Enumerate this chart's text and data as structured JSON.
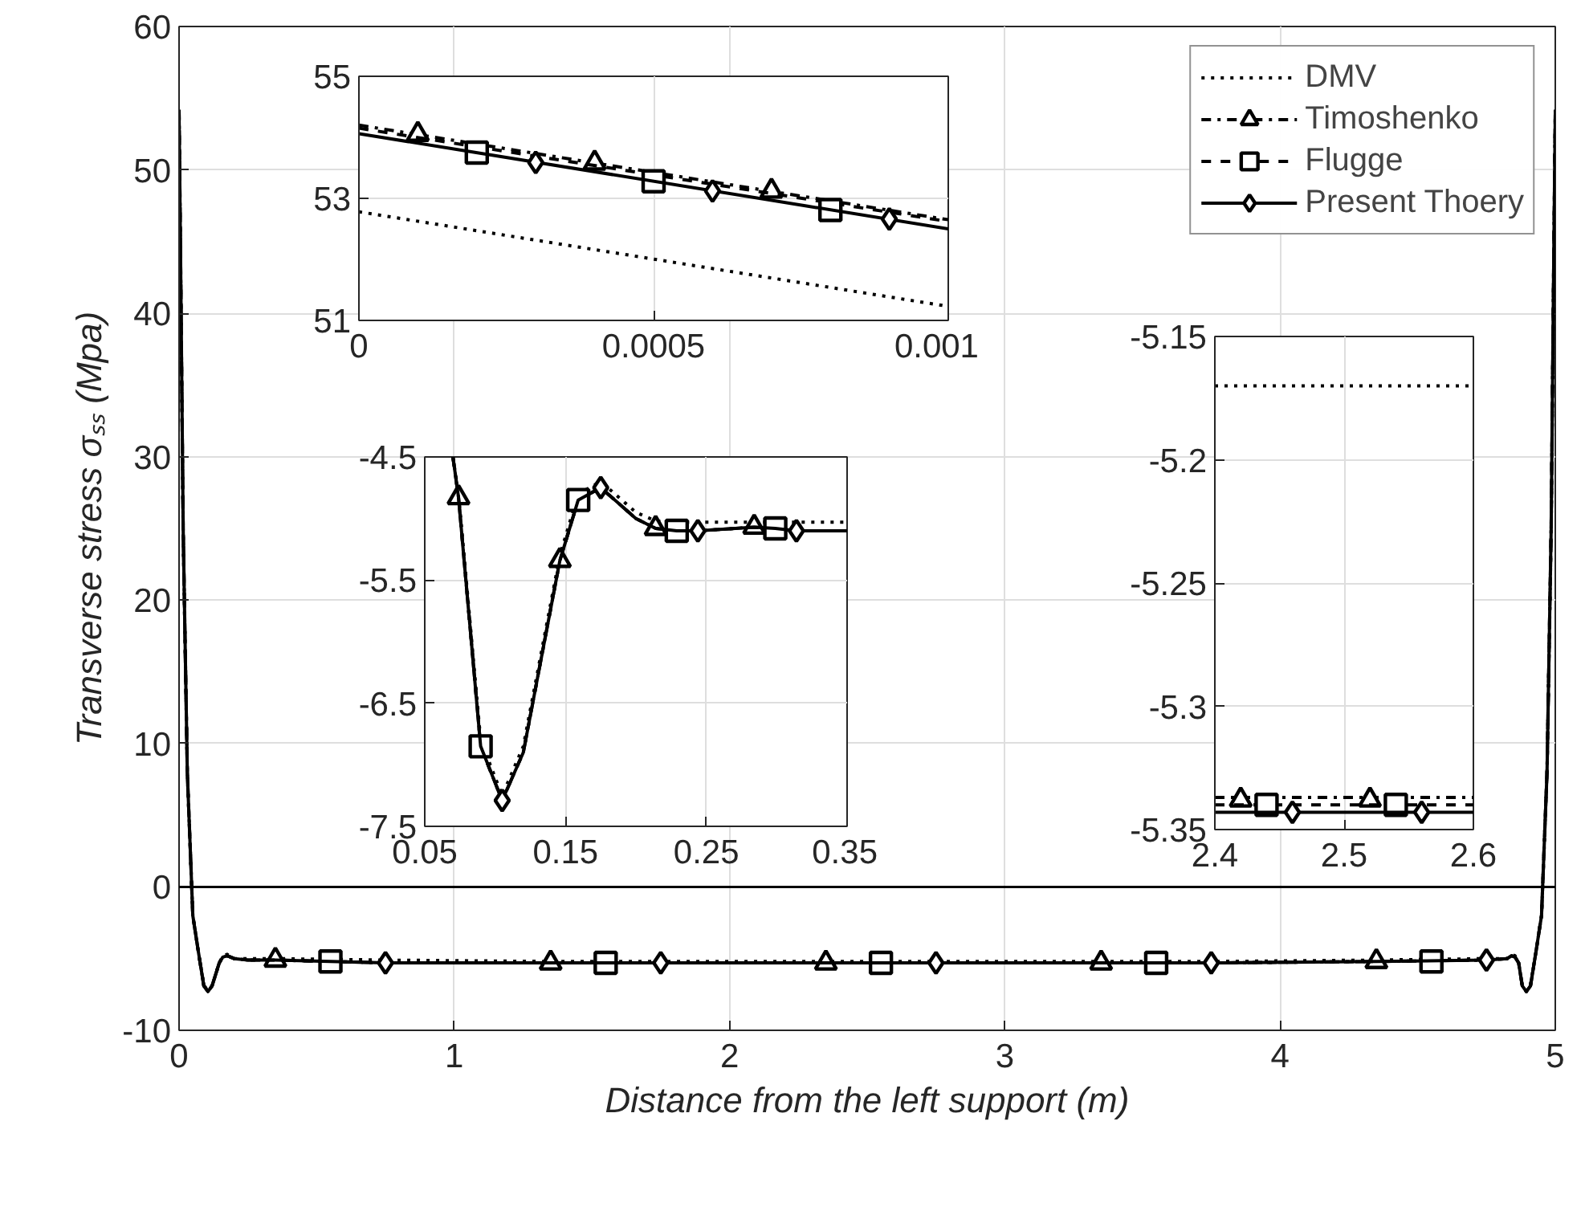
{
  "chart_data": [
    {
      "type": "line",
      "xlabel": "Distance from the left support (m)",
      "ylabel": "Transverse stress σₛₛ (Mpa)",
      "xlim": [
        0,
        5
      ],
      "ylim": [
        -10,
        60
      ],
      "xticks": [
        0,
        1,
        2,
        3,
        4,
        5
      ],
      "yticks": [
        -10,
        0,
        10,
        20,
        30,
        40,
        50,
        60
      ],
      "grid": true,
      "legend": "top right",
      "ref_lines": [
        {
          "axis": "y",
          "value": 0,
          "color": "#000000",
          "line_style": "solid"
        }
      ],
      "series": [
        {
          "name": "DMV",
          "color": "#000000",
          "line_style": "dotted",
          "marker": "none",
          "x": [
            0,
            0.005,
            0.015,
            0.03,
            0.05,
            0.07,
            0.09,
            0.105,
            0.12,
            0.146,
            0.159,
            0.175,
            0.2,
            0.25,
            0.35,
            0.75,
            1.35,
            1.75,
            2.4,
            2.6,
            3.35,
            3.75,
            4.35,
            4.75,
            4.825,
            4.841,
            4.854,
            4.867,
            4.88,
            4.895,
            4.91,
            4.93,
            4.95,
            4.97,
            4.985,
            4.995,
            5
          ],
          "values": [
            52.8,
            44,
            24.5,
            8,
            -2,
            -4.5,
            -6.8,
            -7.3,
            -6.9,
            -5.3,
            -4.8,
            -4.7,
            -5.0,
            -5.0,
            -5.0,
            -5.1,
            -5.2,
            -5.2,
            -5.2,
            -5.2,
            -5.2,
            -5.2,
            -5.1,
            -5.0,
            -5.0,
            -4.7,
            -4.8,
            -5.3,
            -6.9,
            -7.3,
            -6.8,
            -4.5,
            -2,
            8,
            24.5,
            44,
            52.8
          ]
        },
        {
          "name": "Timoshenko",
          "color": "#000000",
          "line_style": "dashdot",
          "marker": "none",
          "x": [
            0,
            0.005,
            0.015,
            0.03,
            0.05,
            0.07,
            0.09,
            0.105,
            0.12,
            0.146,
            0.159,
            0.175,
            0.2,
            0.25,
            0.35,
            0.75,
            1.35,
            1.75,
            2.35,
            2.75,
            3.35,
            3.75,
            4.35,
            4.75,
            4.825,
            4.841,
            4.854,
            4.867,
            4.88,
            4.895,
            4.91,
            4.93,
            4.95,
            4.97,
            4.985,
            4.995,
            5
          ],
          "values": [
            54.2,
            45,
            25,
            8,
            -2,
            -4.5,
            -6.9,
            -7.3,
            -6.9,
            -5.3,
            -4.9,
            -4.8,
            -5.0,
            -5.1,
            -5.1,
            -5.3,
            -5.3,
            -5.3,
            -5.3,
            -5.3,
            -5.3,
            -5.3,
            -5.2,
            -5.1,
            -5.0,
            -4.8,
            -4.9,
            -5.3,
            -6.9,
            -7.3,
            -6.9,
            -4.5,
            -2,
            8,
            25,
            45,
            54.2
          ]
        },
        {
          "type": "scatter",
          "color": "#000000",
          "marker": "triangle",
          "x": [
            0.35,
            1.35,
            2.35,
            3.35,
            4.35
          ],
          "values": [
            -5.1,
            -5.3,
            -5.3,
            -5.3,
            -5.2
          ]
        },
        {
          "name": "Flugge",
          "color": "#000000",
          "line_style": "dashed",
          "marker": "none",
          "x": [
            0,
            0.005,
            0.015,
            0.03,
            0.05,
            0.07,
            0.09,
            0.105,
            0.12,
            0.146,
            0.159,
            0.175,
            0.2,
            0.25,
            0.35,
            0.75,
            1.35,
            1.75,
            2.35,
            2.75,
            3.35,
            3.75,
            4.35,
            4.75,
            4.825,
            4.841,
            4.854,
            4.867,
            4.88,
            4.895,
            4.91,
            4.93,
            4.95,
            4.97,
            4.985,
            4.995,
            5
          ],
          "values": [
            54.1,
            45,
            25,
            8,
            -2,
            -4.5,
            -6.9,
            -7.3,
            -6.9,
            -5.3,
            -4.9,
            -4.8,
            -5.0,
            -5.1,
            -5.1,
            -5.3,
            -5.3,
            -5.3,
            -5.3,
            -5.3,
            -5.3,
            -5.3,
            -5.2,
            -5.1,
            -5.0,
            -4.8,
            -4.9,
            -5.3,
            -6.9,
            -7.3,
            -6.9,
            -4.5,
            -2,
            8,
            25,
            45,
            54.1
          ]
        },
        {
          "type": "scatter",
          "color": "#000000",
          "marker": "square",
          "x": [
            0.55,
            1.55,
            2.55,
            3.55,
            4.55
          ],
          "values": [
            -5.2,
            -5.3,
            -5.3,
            -5.3,
            -5.2
          ]
        },
        {
          "name": "Present Thoery",
          "color": "#000000",
          "line_style": "solid",
          "marker": "none",
          "x": [
            0,
            0.005,
            0.015,
            0.03,
            0.05,
            0.07,
            0.09,
            0.105,
            0.12,
            0.146,
            0.159,
            0.175,
            0.2,
            0.25,
            0.35,
            0.75,
            1.35,
            1.75,
            2.35,
            2.75,
            3.35,
            3.75,
            4.35,
            4.75,
            4.825,
            4.841,
            4.854,
            4.867,
            4.88,
            4.895,
            4.91,
            4.93,
            4.95,
            4.97,
            4.985,
            4.995,
            5
          ],
          "values": [
            54.0,
            45,
            25,
            8,
            -2,
            -4.5,
            -6.9,
            -7.3,
            -6.9,
            -5.3,
            -4.9,
            -4.8,
            -5.0,
            -5.1,
            -5.1,
            -5.3,
            -5.3,
            -5.3,
            -5.3,
            -5.3,
            -5.3,
            -5.3,
            -5.2,
            -5.1,
            -5.0,
            -4.8,
            -4.9,
            -5.3,
            -6.9,
            -7.3,
            -6.9,
            -4.5,
            -2,
            8,
            25,
            45,
            54.0
          ]
        },
        {
          "type": "scatter",
          "color": "#000000",
          "marker": "diamond",
          "x": [
            0.75,
            1.75,
            2.75,
            3.75,
            4.75
          ],
          "values": [
            -5.3,
            -5.3,
            -5.3,
            -5.3,
            -5.1
          ]
        }
      ]
    },
    {
      "type": "line",
      "xlim": [
        0,
        0.001
      ],
      "ylim": [
        51,
        55
      ],
      "xticks": [
        0,
        0.0005,
        0.001
      ],
      "yticks": [
        51,
        53,
        55
      ],
      "grid": true,
      "series": [
        {
          "color": "#000000",
          "line_style": "dotted",
          "marker": "none",
          "x": [
            0,
            0.001
          ],
          "values": [
            52.78,
            51.23
          ]
        },
        {
          "color": "#000000",
          "line_style": "dashdot",
          "marker": "none",
          "x": [
            0,
            0.001
          ],
          "values": [
            54.2,
            52.65
          ]
        },
        {
          "type": "scatter",
          "color": "#000000",
          "marker": "triangle",
          "x": [
            0.0001,
            0.0004,
            0.0007
          ],
          "values": [
            54.05,
            53.58,
            53.12
          ]
        },
        {
          "color": "#000000",
          "line_style": "dashed",
          "marker": "none",
          "x": [
            0,
            0.001
          ],
          "values": [
            54.15,
            52.62
          ]
        },
        {
          "type": "scatter",
          "color": "#000000",
          "marker": "square",
          "x": [
            0.0002,
            0.0005,
            0.0008
          ],
          "values": [
            53.75,
            53.28,
            52.81
          ]
        },
        {
          "color": "#000000",
          "line_style": "solid",
          "marker": "none",
          "x": [
            0,
            0.001
          ],
          "values": [
            54.06,
            52.5
          ]
        },
        {
          "type": "scatter",
          "color": "#000000",
          "marker": "diamond",
          "x": [
            0.0003,
            0.0006,
            0.0009
          ],
          "values": [
            53.59,
            53.12,
            52.66
          ]
        }
      ]
    },
    {
      "type": "line",
      "xlim": [
        0.05,
        0.35
      ],
      "ylim": [
        -7.5,
        -4.5
      ],
      "xticks": [
        0.05,
        0.15,
        0.25,
        0.35
      ],
      "yticks": [
        -7.5,
        -6.5,
        -5.5,
        -4.5
      ],
      "grid": true,
      "series": [
        {
          "color": "#000000",
          "line_style": "dotted",
          "marker": "none",
          "x": [
            0.07,
            0.074,
            0.0897,
            0.105,
            0.12,
            0.146,
            0.159,
            0.175,
            0.2,
            0.214,
            0.229,
            0.244,
            0.284,
            0.299,
            0.314,
            0.35
          ],
          "values": [
            -4.5,
            -4.8,
            -6.8,
            -7.25,
            -6.85,
            -5.3,
            -4.8,
            -4.7,
            -4.95,
            -5.02,
            -5.03,
            -5.03,
            -5.03,
            -5.03,
            -5.03,
            -5.03
          ]
        },
        {
          "color": "#000000",
          "line_style": "dashdot",
          "marker": "none",
          "x": [
            0.07,
            0.074,
            0.0897,
            0.105,
            0.12,
            0.146,
            0.159,
            0.175,
            0.2,
            0.214,
            0.229,
            0.244,
            0.284,
            0.299,
            0.314,
            0.35
          ],
          "values": [
            -4.5,
            -4.83,
            -6.85,
            -7.29,
            -6.9,
            -5.34,
            -4.85,
            -4.75,
            -5.0,
            -5.08,
            -5.1,
            -5.1,
            -5.07,
            -5.08,
            -5.1,
            -5.1
          ]
        },
        {
          "type": "scatter",
          "color": "#000000",
          "marker": "triangle",
          "x": [
            0.074,
            0.146,
            0.214,
            0.284
          ],
          "values": [
            -4.83,
            -5.34,
            -5.08,
            -5.07
          ]
        },
        {
          "color": "#000000",
          "line_style": "dashed",
          "marker": "none",
          "x": [
            0.07,
            0.074,
            0.0897,
            0.105,
            0.12,
            0.146,
            0.159,
            0.175,
            0.2,
            0.214,
            0.229,
            0.244,
            0.284,
            0.299,
            0.314,
            0.35
          ],
          "values": [
            -4.5,
            -4.83,
            -6.85,
            -7.29,
            -6.9,
            -5.34,
            -4.85,
            -4.75,
            -5.0,
            -5.08,
            -5.1,
            -5.1,
            -5.07,
            -5.08,
            -5.1,
            -5.1
          ]
        },
        {
          "type": "scatter",
          "color": "#000000",
          "marker": "square",
          "x": [
            0.0897,
            0.159,
            0.229,
            0.299
          ],
          "values": [
            -6.85,
            -4.85,
            -5.1,
            -5.08
          ]
        },
        {
          "color": "#000000",
          "line_style": "solid",
          "marker": "none",
          "x": [
            0.07,
            0.074,
            0.0897,
            0.105,
            0.12,
            0.146,
            0.159,
            0.175,
            0.2,
            0.214,
            0.229,
            0.244,
            0.284,
            0.299,
            0.314,
            0.35
          ],
          "values": [
            -4.5,
            -4.83,
            -6.85,
            -7.29,
            -6.9,
            -5.34,
            -4.85,
            -4.75,
            -5.0,
            -5.08,
            -5.1,
            -5.1,
            -5.07,
            -5.08,
            -5.1,
            -5.1
          ]
        },
        {
          "type": "scatter",
          "color": "#000000",
          "marker": "diamond",
          "x": [
            0.105,
            0.175,
            0.244,
            0.314
          ],
          "values": [
            -7.29,
            -4.75,
            -5.1,
            -5.1
          ]
        }
      ]
    },
    {
      "type": "line",
      "xlim": [
        2.4,
        2.6
      ],
      "ylim": [
        -5.35,
        -5.15
      ],
      "xticks": [
        2.4,
        2.5,
        2.6
      ],
      "yticks": [
        -5.35,
        -5.3,
        -5.25,
        -5.2,
        -5.15
      ],
      "grid": true,
      "series": [
        {
          "color": "#000000",
          "line_style": "dotted",
          "marker": "none",
          "x": [
            2.4,
            2.6
          ],
          "values": [
            -5.17,
            -5.17
          ]
        },
        {
          "color": "#000000",
          "line_style": "dashdot",
          "marker": "none",
          "x": [
            2.4,
            2.6
          ],
          "values": [
            -5.337,
            -5.337
          ]
        },
        {
          "type": "scatter",
          "color": "#000000",
          "marker": "triangle",
          "x": [
            2.42,
            2.52
          ],
          "values": [
            -5.338,
            -5.338
          ]
        },
        {
          "color": "#000000",
          "line_style": "dashed",
          "marker": "none",
          "x": [
            2.4,
            2.6
          ],
          "values": [
            -5.34,
            -5.34
          ]
        },
        {
          "type": "scatter",
          "color": "#000000",
          "marker": "square",
          "x": [
            2.44,
            2.54
          ],
          "values": [
            -5.34,
            -5.34
          ]
        },
        {
          "color": "#000000",
          "line_style": "solid",
          "marker": "none",
          "x": [
            2.4,
            2.6
          ],
          "values": [
            -5.343,
            -5.343
          ]
        },
        {
          "type": "scatter",
          "color": "#000000",
          "marker": "diamond",
          "x": [
            2.46,
            2.56
          ],
          "values": [
            -5.343,
            -5.343
          ]
        }
      ]
    }
  ]
}
